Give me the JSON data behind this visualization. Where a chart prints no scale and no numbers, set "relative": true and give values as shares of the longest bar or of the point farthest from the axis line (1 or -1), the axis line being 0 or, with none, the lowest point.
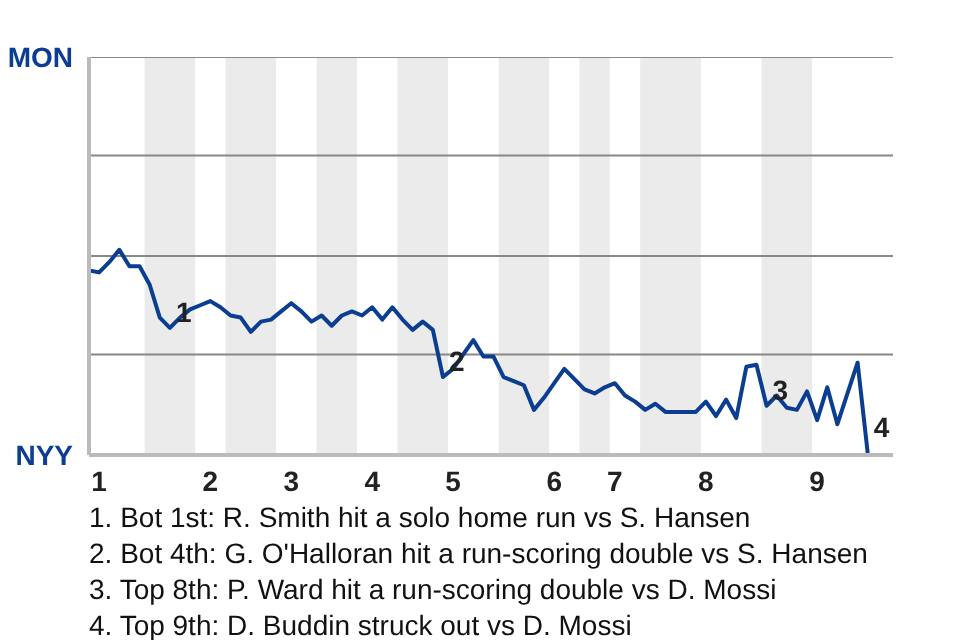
{
  "chart_data": {
    "type": "line",
    "relative": true,
    "categories": [
      null,
      "1",
      null,
      null,
      null,
      null,
      null,
      null,
      null,
      null,
      null,
      null,
      "2",
      null,
      null,
      null,
      null,
      null,
      null,
      null,
      "3",
      null,
      null,
      null,
      null,
      null,
      null,
      null,
      "4",
      null,
      null,
      null,
      null,
      null,
      null,
      null,
      "5",
      null,
      null,
      null,
      null,
      null,
      null,
      null,
      null,
      null,
      "6",
      null,
      null,
      null,
      null,
      null,
      "7",
      null,
      null,
      null,
      null,
      null,
      null,
      null,
      null,
      "8",
      null,
      null,
      null,
      null,
      null,
      null,
      null,
      null,
      null,
      null,
      "9",
      null,
      null,
      null,
      null,
      null
    ],
    "marker": "none",
    "line_style": "solid",
    "ref_lines": [
      {
        "axis": "y",
        "value": 0.49,
        "color": "#888888"
      },
      {
        "axis": "y",
        "value": 0.97,
        "color": "#888888"
      },
      {
        "axis": "y",
        "value": 1.46,
        "color": "#888888"
      },
      {
        "axis": "y",
        "value": 1.94,
        "color": "#888888"
      }
    ],
    "series": [
      {
        "color": "#0b3d91",
        "values": [
          0.9,
          0.89,
          0.94,
          1,
          0.92,
          0.92,
          0.83,
          0.67,
          0.62,
          0.67,
          0.71,
          0.73,
          0.75,
          0.72,
          0.68,
          0.67,
          0.6,
          0.65,
          0.66,
          0.7,
          0.74,
          0.7,
          0.65,
          0.68,
          0.63,
          0.68,
          0.7,
          0.68,
          0.72,
          0.66,
          0.72,
          0.66,
          0.61,
          0.65,
          0.61,
          0.38,
          0.42,
          0.49,
          0.56,
          0.48,
          0.48,
          0.38,
          0.36,
          0.34,
          0.22,
          0.28,
          0.35,
          0.42,
          0.37,
          0.32,
          0.3,
          0.33,
          0.35,
          0.29,
          0.26,
          0.22,
          0.25,
          0.21,
          0.21,
          0.21,
          0.21,
          0.26,
          0.19,
          0.27,
          0.18,
          0.43,
          0.44,
          0.24,
          0.29,
          0.23,
          0.22,
          0.31,
          0.17,
          0.33,
          0.15,
          0.3,
          0.45,
          0.01
        ]
      }
    ],
    "annotations": [
      "MON",
      "NYY",
      {
        "text": "1",
        "y": 0.62
      },
      {
        "text": "2",
        "y": 0.38
      },
      {
        "text": "3",
        "y": 0.24
      },
      "4",
      "1. Bot 1st: R. Smith hit a solo home run vs S. Hansen",
      "2. Bot 4th: G. O'Halloran hit a run-scoring double vs S. Hansen",
      "3. Top 8th: P. Ward hit a run-scoring double vs D. Mossi",
      "4. Top 9th: D. Buddin struck out vs D. Mossi"
    ]
  }
}
